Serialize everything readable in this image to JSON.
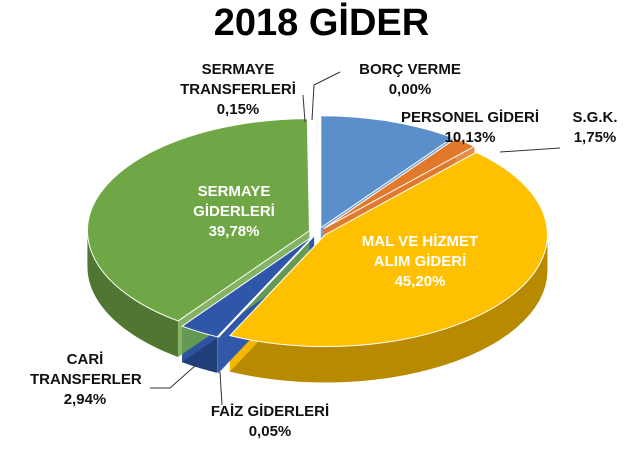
{
  "chart_data": {
    "type": "pie",
    "title": "2018 GİDER",
    "categories": [
      "PERSONEL GİDERİ",
      "S.G.K.",
      "MAL VE HİZMET ALIM GİDERİ",
      "FAİZ GİDERLERİ",
      "CARİ TRANSFERLER",
      "SERMAYE GİDERLERİ",
      "SERMAYE TRANSFERLERİ",
      "BORÇ VERME"
    ],
    "values": [
      10.13,
      1.75,
      45.2,
      0.05,
      2.94,
      39.78,
      0.15,
      0.0
    ],
    "value_labels": [
      "10,13%",
      "1,75%",
      "45,20%",
      "0,05%",
      "2,94%",
      "39,78%",
      "0,15%",
      "0,00%"
    ],
    "colors": [
      "#5b8fcc",
      "#e2792a",
      "#ffc000",
      "#3a62b0",
      "#2f56a8",
      "#6fa646",
      "#eef3fa",
      "#c9d8ee"
    ]
  }
}
